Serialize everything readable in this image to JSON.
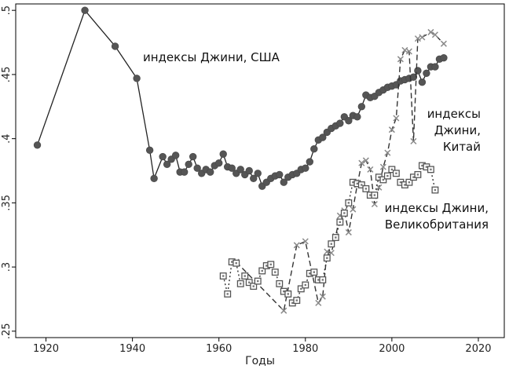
{
  "chart_data": {
    "type": "line",
    "title": "",
    "xlabel": "Годы",
    "ylabel": "",
    "xlim": [
      1913,
      2026
    ],
    "ylim": [
      0.245,
      0.505
    ],
    "x_ticks": [
      1920,
      1940,
      1960,
      1980,
      2000,
      2020
    ],
    "x_tick_labels": [
      "1920",
      "1940",
      "1960",
      "1980",
      "2000",
      "2020"
    ],
    "y_ticks": [
      0.25,
      0.3,
      0.35,
      0.4,
      0.45,
      0.5
    ],
    "y_tick_labels": [
      ".25",
      ".3",
      ".35",
      ".4",
      ".45",
      ".5"
    ],
    "grid": false,
    "colors": {
      "usa": "#555555",
      "china": "#8a8a8a",
      "uk": "#333333",
      "axis": "#000000"
    },
    "series": [
      {
        "name": "индексы Джини, США",
        "label_lines": [
          "индексы Джини, США"
        ],
        "marker": "circle",
        "line_style": "solid",
        "x": [
          1918,
          1929,
          1936,
          1941,
          1944,
          1945,
          1947,
          1948,
          1949,
          1950,
          1951,
          1952,
          1953,
          1954,
          1955,
          1956,
          1957,
          1958,
          1959,
          1960,
          1961,
          1962,
          1963,
          1964,
          1965,
          1966,
          1967,
          1968,
          1969,
          1970,
          1971,
          1972,
          1973,
          1974,
          1975,
          1976,
          1977,
          1978,
          1979,
          1980,
          1981,
          1982,
          1983,
          1984,
          1985,
          1986,
          1987,
          1988,
          1989,
          1990,
          1991,
          1992,
          1993,
          1994,
          1995,
          1996,
          1997,
          1998,
          1999,
          2000,
          2001,
          2002,
          2003,
          2004,
          2005,
          2006,
          2007,
          2008,
          2009,
          2010,
          2011,
          2012
        ],
        "y": [
          0.395,
          0.5,
          0.472,
          0.447,
          0.391,
          0.369,
          0.386,
          0.38,
          0.384,
          0.387,
          0.374,
          0.374,
          0.38,
          0.386,
          0.377,
          0.373,
          0.376,
          0.374,
          0.379,
          0.381,
          0.388,
          0.378,
          0.377,
          0.373,
          0.376,
          0.372,
          0.375,
          0.369,
          0.373,
          0.363,
          0.366,
          0.369,
          0.371,
          0.372,
          0.366,
          0.37,
          0.372,
          0.373,
          0.376,
          0.377,
          0.382,
          0.392,
          0.399,
          0.401,
          0.405,
          0.408,
          0.41,
          0.412,
          0.417,
          0.414,
          0.418,
          0.417,
          0.425,
          0.434,
          0.432,
          0.433,
          0.436,
          0.438,
          0.44,
          0.441,
          0.442,
          0.445,
          0.446,
          0.447,
          0.448,
          0.453,
          0.444,
          0.451,
          0.456,
          0.456,
          0.462,
          0.463
        ]
      },
      {
        "name": "индексы Джини, Китай",
        "label_lines": [
          "индексы",
          "Джини,",
          "Китай"
        ],
        "marker": "x",
        "line_style": "dashed",
        "x": [
          1964,
          1975,
          1978,
          1980,
          1983,
          1984,
          1985,
          1986,
          1987,
          1988,
          1989,
          1990,
          1991,
          1992,
          1993,
          1994,
          1995,
          1996,
          1997,
          1998,
          1999,
          2000,
          2001,
          2002,
          2003,
          2004,
          2005,
          2006,
          2007,
          2009,
          2010,
          2012
        ],
        "y": [
          0.304,
          0.266,
          0.317,
          0.32,
          0.272,
          0.277,
          0.312,
          0.311,
          0.324,
          0.34,
          0.344,
          0.327,
          0.345,
          0.364,
          0.381,
          0.383,
          0.376,
          0.349,
          0.362,
          0.378,
          0.389,
          0.407,
          0.416,
          0.462,
          0.469,
          0.468,
          0.398,
          0.478,
          0.479,
          0.483,
          0.481,
          0.474
        ]
      },
      {
        "name": "индексы Джини, Великобритания",
        "label_lines": [
          "индексы Джини,",
          "Великобритания"
        ],
        "marker": "square",
        "line_style": "dotted",
        "x": [
          1961,
          1962,
          1963,
          1964,
          1965,
          1966,
          1967,
          1968,
          1969,
          1970,
          1971,
          1972,
          1973,
          1974,
          1975,
          1976,
          1977,
          1978,
          1979,
          1980,
          1981,
          1982,
          1983,
          1984,
          1985,
          1986,
          1987,
          1988,
          1989,
          1990,
          1991,
          1992,
          1993,
          1994,
          1995,
          1996,
          1997,
          1998,
          1999,
          2000,
          2001,
          2002,
          2003,
          2004,
          2005,
          2006,
          2007,
          2008,
          2009,
          2010
        ],
        "y": [
          0.293,
          0.279,
          0.304,
          0.303,
          0.287,
          0.293,
          0.288,
          0.285,
          0.289,
          0.297,
          0.301,
          0.302,
          0.296,
          0.287,
          0.281,
          0.279,
          0.272,
          0.274,
          0.283,
          0.286,
          0.295,
          0.296,
          0.29,
          0.29,
          0.307,
          0.318,
          0.323,
          0.335,
          0.342,
          0.35,
          0.366,
          0.365,
          0.364,
          0.361,
          0.356,
          0.356,
          0.37,
          0.368,
          0.371,
          0.376,
          0.373,
          0.366,
          0.364,
          0.366,
          0.37,
          0.372,
          0.379,
          0.378,
          0.376,
          0.36
        ]
      }
    ]
  }
}
